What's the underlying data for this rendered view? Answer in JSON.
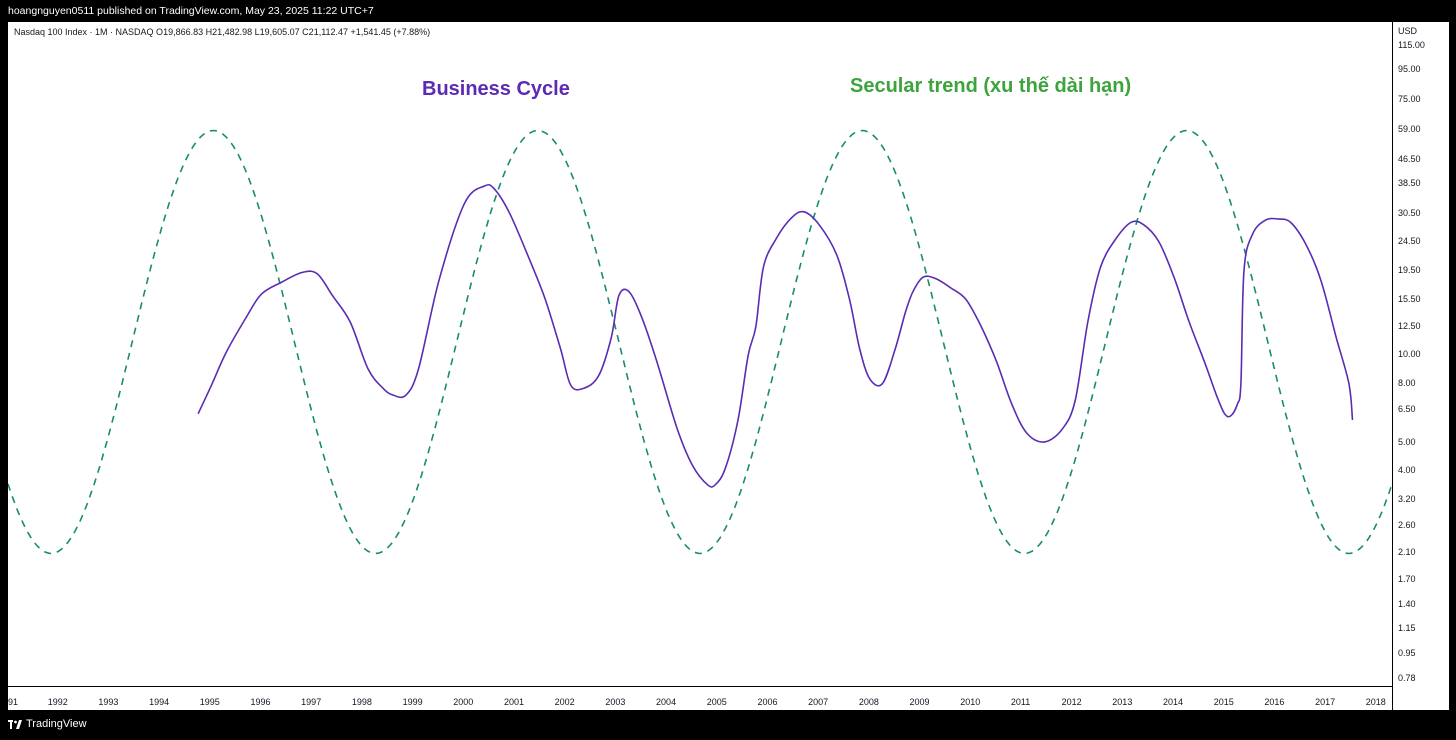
{
  "header": {
    "published_line": "hoangnguyen0511 published on TradingView.com, May 23, 2025 11:22 UTC+7"
  },
  "symbol_line": "Nasdaq 100 Index · 1M · NASDAQ  O19,866.83  H21,482.98  L19,605.07  C21,112.47  +1,541.45 (+7.88%)",
  "footer": {
    "brand": "TradingView",
    "logo_icon": "tradingview-logo-icon"
  },
  "annotations": {
    "business_cycle": "Business Cycle",
    "secular_trend": "Secular trend (xu thế dài hạn)"
  },
  "chart_data": {
    "type": "line",
    "currency": "USD",
    "y_scale": "log",
    "ylim": [
      0.76,
      130
    ],
    "xlim": [
      1991,
      2018.3
    ],
    "price_ticks": [
      "115.00",
      "95.00",
      "75.00",
      "59.00",
      "46.50",
      "38.50",
      "30.50",
      "24.50",
      "19.50",
      "15.50",
      "12.50",
      "10.00",
      "8.00",
      "6.50",
      "5.00",
      "4.00",
      "3.20",
      "2.60",
      "2.10",
      "1.70",
      "1.40",
      "1.15",
      "0.95",
      "0.78"
    ],
    "year_ticks": [
      "91",
      "1992",
      "1993",
      "1994",
      "1995",
      "1996",
      "1997",
      "1998",
      "1999",
      "2000",
      "2001",
      "2002",
      "2003",
      "2004",
      "2005",
      "2006",
      "2007",
      "2008",
      "2009",
      "2010",
      "2011",
      "2012",
      "2013",
      "2014",
      "2015",
      "2016",
      "2017",
      "2018"
    ],
    "colors": {
      "business": "#5b2bb3",
      "secular": "#1a8c6e",
      "business_label": "#5b2bb3",
      "secular_label": "#3da33d"
    },
    "series": [
      {
        "name": "Business Cycle",
        "style": "solid",
        "x": [
          1994.75,
          1995.0,
          1995.3,
          1995.7,
          1996.0,
          1996.4,
          1996.8,
          1997.1,
          1997.4,
          1997.75,
          1998.1,
          1998.4,
          1998.6,
          1998.85,
          1999.1,
          1999.5,
          2000.0,
          2000.4,
          2000.6,
          2000.9,
          2001.3,
          2001.6,
          2001.9,
          2002.1,
          2002.35,
          2002.65,
          2002.9,
          2003.05,
          2003.25,
          2003.5,
          2003.8,
          2004.2,
          2004.5,
          2004.8,
          2004.95,
          2005.15,
          2005.4,
          2005.6,
          2005.75,
          2005.9,
          2006.15,
          2006.45,
          2006.7,
          2007.0,
          2007.35,
          2007.6,
          2007.8,
          2008.0,
          2008.25,
          2008.5,
          2008.7,
          2008.85,
          2009.05,
          2009.3,
          2009.6,
          2009.9,
          2010.2,
          2010.5,
          2010.8,
          2011.1,
          2011.45,
          2011.8,
          2012.05,
          2012.3,
          2012.55,
          2012.85,
          2013.15,
          2013.4,
          2013.7,
          2014.0,
          2014.3,
          2014.6,
          2014.85,
          2015.0,
          2015.12,
          2015.25,
          2015.32,
          2015.38,
          2015.55,
          2015.8,
          2016.05,
          2016.3,
          2016.6,
          2016.9,
          2017.2,
          2017.45,
          2017.52
        ],
        "values": [
          6.3,
          7.8,
          10.2,
          13.5,
          16.2,
          17.8,
          19.2,
          19.0,
          16.0,
          13.0,
          9.0,
          7.7,
          7.3,
          7.3,
          9.0,
          18.0,
          33.0,
          38.0,
          37.0,
          30.5,
          21.0,
          15.5,
          10.5,
          7.9,
          7.7,
          8.5,
          11.5,
          16.0,
          16.5,
          13.5,
          9.5,
          5.6,
          4.2,
          3.6,
          3.6,
          4.1,
          6.0,
          10.0,
          12.5,
          20.0,
          25.0,
          29.5,
          31.0,
          28.0,
          22.0,
          15.5,
          10.5,
          8.3,
          8.0,
          10.5,
          14.0,
          16.5,
          18.5,
          18.3,
          17.0,
          15.5,
          12.5,
          9.5,
          6.8,
          5.4,
          5.05,
          5.6,
          7.0,
          13.0,
          20.0,
          25.0,
          28.5,
          28.0,
          24.5,
          18.5,
          13.0,
          9.5,
          7.2,
          6.3,
          6.2,
          6.8,
          8.0,
          19.5,
          26.0,
          29.0,
          29.3,
          28.5,
          24.0,
          18.0,
          11.5,
          8.0,
          6.0
        ]
      },
      {
        "name": "Secular trend (xu thế dài hạn)",
        "style": "dashed",
        "center": 11.1,
        "amplitude_factor": 5.3,
        "period_years": 6.4,
        "peak_year": 1995.05,
        "x_range": [
          1991.0,
          2018.3
        ]
      }
    ]
  }
}
